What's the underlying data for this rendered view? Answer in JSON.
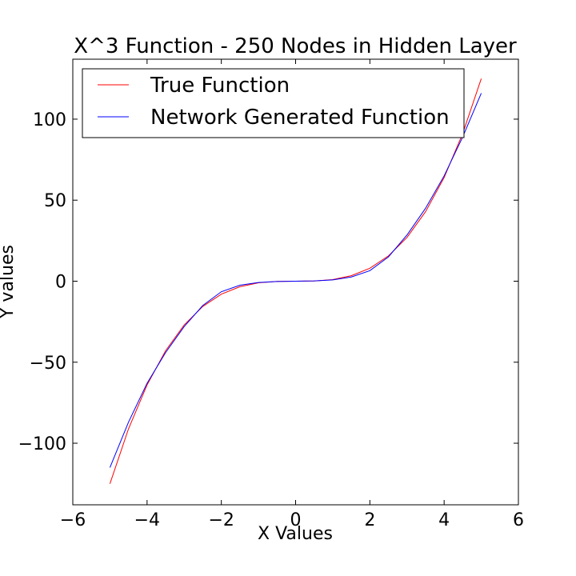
{
  "chart_data": {
    "type": "line",
    "title": "X^3 Function - 250 Nodes in Hidden Layer",
    "xlabel": "X Values",
    "ylabel": "Y values",
    "xlim": [
      -6,
      6
    ],
    "ylim": [
      -138,
      137
    ],
    "xticks": [
      -6,
      -4,
      -2,
      0,
      2,
      4,
      6
    ],
    "xtick_labels": [
      "−6",
      "−4",
      "−2",
      "0",
      "2",
      "4",
      "6"
    ],
    "yticks": [
      -100,
      -50,
      0,
      50,
      100
    ],
    "ytick_labels": [
      "−100",
      "−50",
      "0",
      "50",
      "100"
    ],
    "grid": false,
    "legend_position": "top-left",
    "series": [
      {
        "name": "True Function",
        "color": "#ff0000",
        "x": [
          -5,
          -4.5,
          -4,
          -3.5,
          -3,
          -2.5,
          -2,
          -1.5,
          -1,
          -0.5,
          0,
          0.5,
          1,
          1.5,
          2,
          2.5,
          3,
          3.5,
          4,
          4.5,
          5
        ],
        "y": [
          -125,
          -91.1,
          -64,
          -42.9,
          -27,
          -15.6,
          -8,
          -3.4,
          -1,
          -0.1,
          0,
          0.1,
          1,
          3.4,
          8,
          15.6,
          27,
          42.9,
          64,
          91.1,
          125
        ]
      },
      {
        "name": "Network Generated Function",
        "color": "#0000ff",
        "x": [
          -5,
          -4.5,
          -4,
          -3.5,
          -3,
          -2.5,
          -2,
          -1.5,
          -1,
          -0.5,
          0,
          0.5,
          1,
          1.5,
          2,
          2.5,
          3,
          3.5,
          4,
          4.5,
          5
        ],
        "y": [
          -115,
          -87,
          -63,
          -44,
          -28,
          -15,
          -6.5,
          -2.5,
          -0.8,
          -0.2,
          0,
          0.2,
          0.8,
          2.6,
          6.5,
          15,
          28.5,
          45,
          65,
          89,
          116
        ]
      }
    ]
  }
}
